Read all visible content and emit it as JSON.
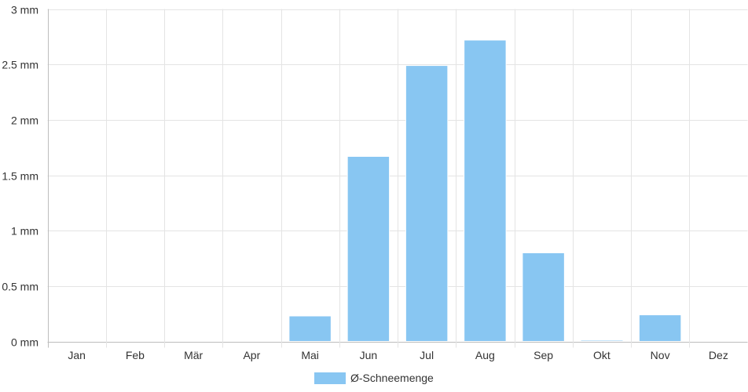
{
  "chart_data": {
    "type": "bar",
    "categories": [
      "Jan",
      "Feb",
      "Mär",
      "Apr",
      "Mai",
      "Jun",
      "Jul",
      "Aug",
      "Sep",
      "Okt",
      "Nov",
      "Dez"
    ],
    "series": [
      {
        "name": "Ø-Schneemenge",
        "values": [
          0,
          0,
          0,
          0,
          0.23,
          1.67,
          2.49,
          2.72,
          0.8,
          0.01,
          0.24,
          0
        ],
        "color": "#88c6f2"
      }
    ],
    "y_ticks": [
      "0 mm",
      "0.5 mm",
      "1 mm",
      "1.5 mm",
      "2 mm",
      "2.5 mm",
      "3 mm"
    ],
    "ylim": [
      0,
      3
    ],
    "grid": true,
    "legend_position": "bottom"
  }
}
